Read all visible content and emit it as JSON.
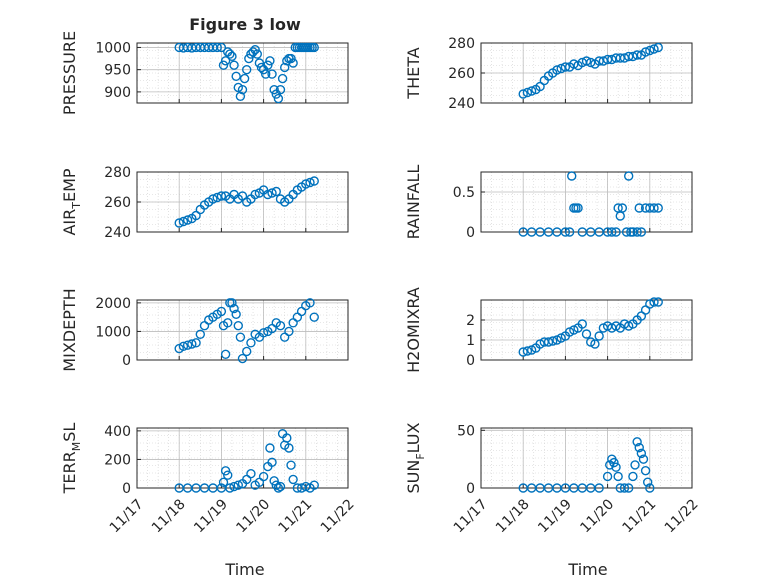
{
  "figure": {
    "title": "Figure 3 low",
    "marker_color": "#0072BD",
    "grid": "dotted minor and major"
  },
  "chart_data": [
    {
      "type": "scatter",
      "ylabel": "PRESSURE",
      "ylim": [
        875,
        1010
      ],
      "yticks": [
        900,
        950,
        1000
      ],
      "xlim": [
        0,
        5
      ],
      "xticks": [
        0,
        1,
        2,
        3,
        4,
        5
      ],
      "xticklabels": [
        "11/17",
        "11/18",
        "11/19",
        "11/20",
        "11/21",
        "11/22"
      ],
      "x": [
        1.0,
        1.1,
        1.2,
        1.3,
        1.4,
        1.5,
        1.6,
        1.7,
        1.8,
        1.9,
        2.0,
        2.05,
        2.1,
        2.15,
        2.2,
        2.25,
        2.3,
        2.35,
        2.4,
        2.45,
        2.5,
        2.55,
        2.6,
        2.65,
        2.7,
        2.75,
        2.8,
        2.85,
        2.9,
        2.95,
        3.0,
        3.05,
        3.1,
        3.15,
        3.2,
        3.25,
        3.3,
        3.35,
        3.4,
        3.45,
        3.5,
        3.55,
        3.6,
        3.65,
        3.7,
        3.75,
        3.8,
        3.85,
        3.9,
        3.95,
        4.0,
        4.05,
        4.1,
        4.15,
        4.2
      ],
      "y": [
        1000,
        999,
        1000,
        999,
        1000,
        1000,
        1000,
        1000,
        1000,
        1000,
        1000,
        960,
        970,
        990,
        985,
        980,
        960,
        935,
        910,
        890,
        905,
        930,
        950,
        975,
        985,
        990,
        995,
        985,
        965,
        955,
        950,
        940,
        960,
        970,
        940,
        905,
        895,
        885,
        905,
        930,
        955,
        970,
        975,
        975,
        965,
        1000,
        1000,
        1000,
        1000,
        1000,
        1000,
        1000,
        1000,
        1000,
        1000
      ]
    },
    {
      "type": "scatter",
      "ylabel": "THETA",
      "ylim": [
        240,
        280
      ],
      "yticks": [
        240,
        260,
        280
      ],
      "xlim": [
        0,
        5
      ],
      "xticks": [
        0,
        1,
        2,
        3,
        4,
        5
      ],
      "xticklabels": [
        "11/17",
        "11/18",
        "11/19",
        "11/20",
        "11/21",
        "11/22"
      ],
      "x": [
        1.0,
        1.1,
        1.2,
        1.3,
        1.4,
        1.5,
        1.6,
        1.7,
        1.8,
        1.9,
        2.0,
        2.1,
        2.2,
        2.3,
        2.4,
        2.5,
        2.6,
        2.7,
        2.8,
        2.9,
        3.0,
        3.1,
        3.2,
        3.3,
        3.4,
        3.5,
        3.6,
        3.7,
        3.8,
        3.9,
        4.0,
        4.1,
        4.2
      ],
      "y": [
        246,
        247,
        248,
        249,
        251,
        255,
        258,
        260,
        262,
        263,
        264,
        264,
        266,
        265,
        267,
        268,
        267,
        266,
        268,
        268,
        269,
        269,
        270,
        270,
        270,
        271,
        271,
        272,
        272,
        274,
        275,
        276,
        277
      ]
    },
    {
      "type": "scatter",
      "ylabel": "AIR_TEMP",
      "ylim": [
        240,
        280
      ],
      "yticks": [
        240,
        260,
        280
      ],
      "xlim": [
        0,
        5
      ],
      "xticks": [
        0,
        1,
        2,
        3,
        4,
        5
      ],
      "xticklabels": [
        "11/17",
        "11/18",
        "11/19",
        "11/20",
        "11/21",
        "11/22"
      ],
      "x": [
        1.0,
        1.1,
        1.2,
        1.3,
        1.4,
        1.5,
        1.6,
        1.7,
        1.8,
        1.9,
        2.0,
        2.1,
        2.2,
        2.3,
        2.4,
        2.5,
        2.6,
        2.7,
        2.8,
        2.9,
        3.0,
        3.1,
        3.2,
        3.3,
        3.4,
        3.5,
        3.6,
        3.7,
        3.8,
        3.9,
        4.0,
        4.1,
        4.2
      ],
      "y": [
        246,
        247,
        248,
        249,
        251,
        255,
        258,
        260,
        262,
        263,
        264,
        264,
        262,
        265,
        262,
        264,
        260,
        262,
        265,
        266,
        268,
        265,
        266,
        267,
        262,
        260,
        262,
        265,
        268,
        270,
        272,
        273,
        274
      ]
    },
    {
      "type": "scatter",
      "ylabel": "RAINFALL",
      "ylim": [
        0,
        0.75
      ],
      "yticks": [
        0,
        0.5
      ],
      "xlim": [
        0,
        5
      ],
      "xticks": [
        0,
        1,
        2,
        3,
        4,
        5
      ],
      "xticklabels": [
        "11/17",
        "11/18",
        "11/19",
        "11/20",
        "11/21",
        "11/22"
      ],
      "x": [
        1.0,
        1.2,
        1.4,
        1.6,
        1.8,
        2.0,
        2.1,
        2.15,
        2.2,
        2.25,
        2.3,
        2.4,
        2.6,
        2.8,
        3.0,
        3.1,
        3.2,
        3.25,
        3.3,
        3.35,
        3.45,
        3.5,
        3.55,
        3.6,
        3.7,
        3.75,
        3.8,
        3.9,
        4.0,
        4.1,
        4.2
      ],
      "y": [
        0,
        0,
        0,
        0,
        0,
        0,
        0,
        0.7,
        0.3,
        0.3,
        0.3,
        0,
        0,
        0,
        0,
        0,
        0,
        0.3,
        0.2,
        0.3,
        0,
        0.7,
        0,
        0,
        0,
        0.3,
        0,
        0.3,
        0.3,
        0.3,
        0.3
      ]
    },
    {
      "type": "scatter",
      "ylabel": "MIXDEPTH",
      "ylim": [
        0,
        2100
      ],
      "yticks": [
        0,
        1000,
        2000
      ],
      "xlim": [
        0,
        5
      ],
      "xticks": [
        0,
        1,
        2,
        3,
        4,
        5
      ],
      "xticklabels": [
        "11/17",
        "11/18",
        "11/19",
        "11/20",
        "11/21",
        "11/22"
      ],
      "x": [
        1.0,
        1.1,
        1.2,
        1.3,
        1.4,
        1.5,
        1.6,
        1.7,
        1.8,
        1.9,
        2.0,
        2.05,
        2.1,
        2.15,
        2.2,
        2.25,
        2.3,
        2.35,
        2.4,
        2.45,
        2.5,
        2.6,
        2.7,
        2.8,
        2.9,
        3.0,
        3.1,
        3.2,
        3.3,
        3.4,
        3.5,
        3.6,
        3.7,
        3.8,
        3.9,
        4.0,
        4.1,
        4.2
      ],
      "y": [
        400,
        480,
        520,
        560,
        600,
        900,
        1200,
        1400,
        1500,
        1600,
        1700,
        1200,
        200,
        1300,
        2000,
        2000,
        1800,
        1600,
        1200,
        800,
        50,
        300,
        600,
        900,
        800,
        950,
        1000,
        1100,
        1300,
        1200,
        800,
        1000,
        1300,
        1500,
        1700,
        1900,
        2000,
        1500
      ]
    },
    {
      "type": "scatter",
      "ylabel": "H2OMIXRA",
      "ylim": [
        0,
        3
      ],
      "yticks": [
        0,
        1,
        2
      ],
      "xlim": [
        0,
        5
      ],
      "xticks": [
        0,
        1,
        2,
        3,
        4,
        5
      ],
      "xticklabels": [
        "11/17",
        "11/18",
        "11/19",
        "11/20",
        "11/21",
        "11/22"
      ],
      "x": [
        1.0,
        1.1,
        1.2,
        1.3,
        1.4,
        1.5,
        1.6,
        1.7,
        1.8,
        1.9,
        2.0,
        2.1,
        2.2,
        2.3,
        2.4,
        2.5,
        2.6,
        2.7,
        2.8,
        2.9,
        3.0,
        3.1,
        3.2,
        3.3,
        3.4,
        3.5,
        3.6,
        3.7,
        3.8,
        3.9,
        4.0,
        4.1,
        4.2
      ],
      "y": [
        0.4,
        0.45,
        0.5,
        0.6,
        0.8,
        0.9,
        0.9,
        0.95,
        1.0,
        1.1,
        1.2,
        1.4,
        1.5,
        1.6,
        1.8,
        1.3,
        0.9,
        0.8,
        1.2,
        1.6,
        1.7,
        1.6,
        1.7,
        1.6,
        1.8,
        1.7,
        1.8,
        2.0,
        2.2,
        2.5,
        2.8,
        2.9,
        2.9
      ]
    },
    {
      "type": "scatter",
      "ylabel": "TERR_MSL",
      "ylim": [
        0,
        420
      ],
      "yticks": [
        0,
        200,
        400
      ],
      "xlim": [
        0,
        5
      ],
      "xticks": [
        0,
        1,
        2,
        3,
        4,
        5
      ],
      "xticklabels": [
        "11/17",
        "11/18",
        "11/19",
        "11/20",
        "11/21",
        "11/22"
      ],
      "x": [
        1.0,
        1.2,
        1.4,
        1.6,
        1.8,
        2.0,
        2.05,
        2.1,
        2.15,
        2.2,
        2.3,
        2.4,
        2.5,
        2.6,
        2.7,
        2.8,
        2.9,
        3.0,
        3.1,
        3.15,
        3.2,
        3.25,
        3.3,
        3.35,
        3.4,
        3.45,
        3.5,
        3.55,
        3.6,
        3.65,
        3.7,
        3.8,
        3.9,
        4.0,
        4.1,
        4.2
      ],
      "y": [
        0,
        0,
        0,
        0,
        0,
        0,
        40,
        120,
        90,
        0,
        10,
        20,
        30,
        60,
        100,
        20,
        40,
        80,
        150,
        280,
        180,
        50,
        20,
        0,
        10,
        380,
        300,
        350,
        280,
        160,
        60,
        0,
        0,
        10,
        0,
        20
      ]
    },
    {
      "type": "scatter",
      "ylabel": "SUN_FLUX",
      "ylim": [
        0,
        52
      ],
      "yticks": [
        0,
        50
      ],
      "xlim": [
        0,
        5
      ],
      "xticks": [
        0,
        1,
        2,
        3,
        4,
        5
      ],
      "xticklabels": [
        "11/17",
        "11/18",
        "11/19",
        "11/20",
        "11/21",
        "11/22"
      ],
      "x": [
        1.0,
        1.2,
        1.4,
        1.6,
        1.8,
        2.0,
        2.2,
        2.4,
        2.6,
        2.8,
        3.0,
        3.05,
        3.1,
        3.15,
        3.2,
        3.25,
        3.3,
        3.4,
        3.5,
        3.6,
        3.65,
        3.7,
        3.75,
        3.8,
        3.85,
        3.9,
        3.95,
        4.0
      ],
      "y": [
        0,
        0,
        0,
        0,
        0,
        0,
        0,
        0,
        0,
        0,
        10,
        20,
        25,
        22,
        18,
        10,
        0,
        0,
        0,
        10,
        20,
        40,
        35,
        30,
        25,
        15,
        5,
        0
      ]
    }
  ],
  "labels": {
    "ylabels": [
      {
        "main": "PRESSURE",
        "sub": ""
      },
      {
        "main": "THETA",
        "sub": ""
      },
      {
        "main": "AIR",
        "sub": "T",
        "rest": "EMP"
      },
      {
        "main": "RAINFALL",
        "sub": ""
      },
      {
        "main": "MIXDEPTH",
        "sub": ""
      },
      {
        "main": "H2OMIXRA",
        "sub": ""
      },
      {
        "main": "TERR",
        "sub": "M",
        "rest": "SL"
      },
      {
        "main": "SUN",
        "sub": "F",
        "rest": "LUX"
      }
    ],
    "xlabel": "Time"
  }
}
